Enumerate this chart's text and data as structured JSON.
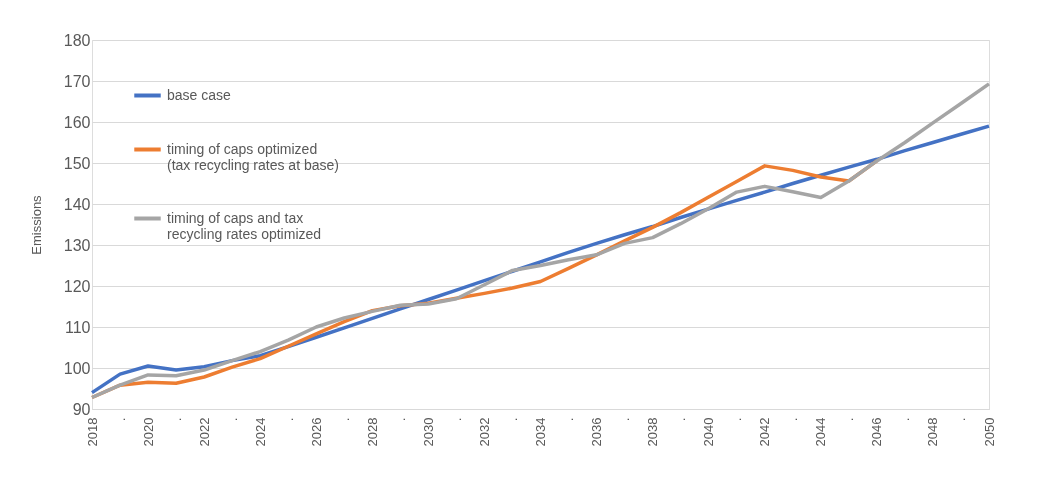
{
  "chart_data": {
    "type": "line",
    "ylabel": "Emissions",
    "categories": [
      "2018",
      ".",
      "2020",
      ".",
      "2022",
      ".",
      "2024",
      ".",
      "2026",
      ".",
      "2028",
      ".",
      "2030",
      ".",
      "2032",
      ".",
      "2034",
      ".",
      "2036",
      ".",
      "2038",
      ".",
      "2040",
      ".",
      "2042",
      ".",
      "2044",
      ".",
      "2046",
      ".",
      "2048",
      ".",
      "2050"
    ],
    "ylim": [
      90,
      180
    ],
    "yticks": [
      90,
      100,
      110,
      120,
      130,
      140,
      150,
      160,
      170,
      180
    ],
    "grid": "y",
    "legend": "top left",
    "line_style": "solid",
    "marker": "none",
    "series": [
      {
        "name": "base case",
        "color": "#4472c4",
        "values": [
          94,
          98.5,
          100.5,
          99.5,
          100.3,
          101.8,
          103,
          105.2,
          107.5,
          109.8,
          112.1,
          114.4,
          116.7,
          119,
          121.3,
          123.6,
          125.9,
          128.2,
          130.4,
          132.5,
          134.5,
          136.7,
          138.8,
          140.9,
          142.9,
          145,
          147,
          149,
          150.9,
          153,
          155,
          157,
          159
        ]
      },
      {
        "name": "timing  of caps optimized (tax recycling rates at base)",
        "color": "#ed7d31",
        "values": [
          92.8,
          95.8,
          96.5,
          96.3,
          97.8,
          100.2,
          102.3,
          105.3,
          108.3,
          111.3,
          114,
          115.2,
          115.8,
          117,
          118.2,
          119.5,
          121.1,
          124.3,
          127.6,
          131,
          134.3,
          137.9,
          141.7,
          145.5,
          149.3,
          148.2,
          146.6,
          145.6,
          150.5,
          null,
          null,
          null,
          null
        ]
      },
      {
        "name": "timing of caps and tax recycling rates optimized",
        "color": "#a5a5a5",
        "values": [
          92.8,
          95.8,
          98.3,
          98.1,
          99.5,
          101.8,
          104,
          106.8,
          110,
          112.2,
          113.8,
          115.3,
          115.6,
          116.9,
          120.3,
          123.8,
          125,
          126.4,
          127.6,
          130.4,
          131.8,
          135.2,
          138.9,
          142.9,
          144.3,
          143,
          141.6,
          145.6,
          150.5,
          155,
          159.8,
          164.5,
          169.3
        ]
      }
    ]
  }
}
